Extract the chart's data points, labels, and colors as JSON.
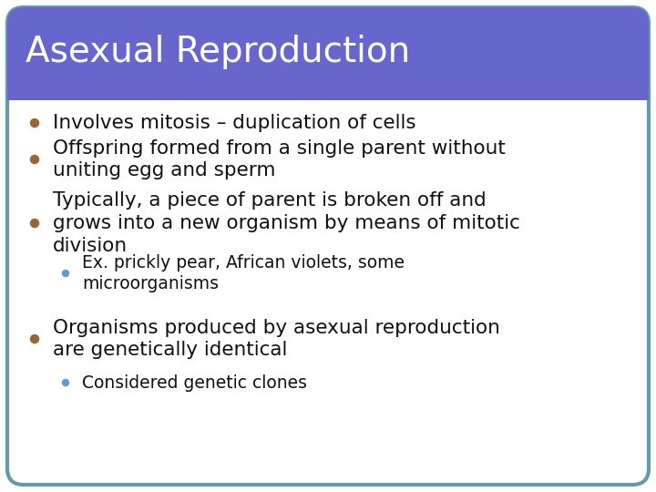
{
  "title": "Asexual Reproduction",
  "title_bg_color": "#6666cc",
  "title_text_color": "#ffffff",
  "body_bg_color": "#ffffff",
  "border_color": "#6699aa",
  "bullet_color_main": "#996633",
  "bullet_color_sub": "#6699cc",
  "bullets": [
    {
      "level": 1,
      "text": "Involves mitosis – duplication of cells"
    },
    {
      "level": 1,
      "text": "Offspring formed from a single parent without\nuniting egg and sperm"
    },
    {
      "level": 1,
      "text": "Typically, a piece of parent is broken off and\ngrows into a new organism by means of mitotic\ndivision"
    },
    {
      "level": 2,
      "text": "Ex. prickly pear, African violets, some\nmicroorganisms"
    },
    {
      "level": 1,
      "text": "Organisms produced by asexual reproduction\nare genetically identical"
    },
    {
      "level": 2,
      "text": "Considered genetic clones"
    }
  ],
  "figsize": [
    7.2,
    5.4
  ],
  "dpi": 100
}
